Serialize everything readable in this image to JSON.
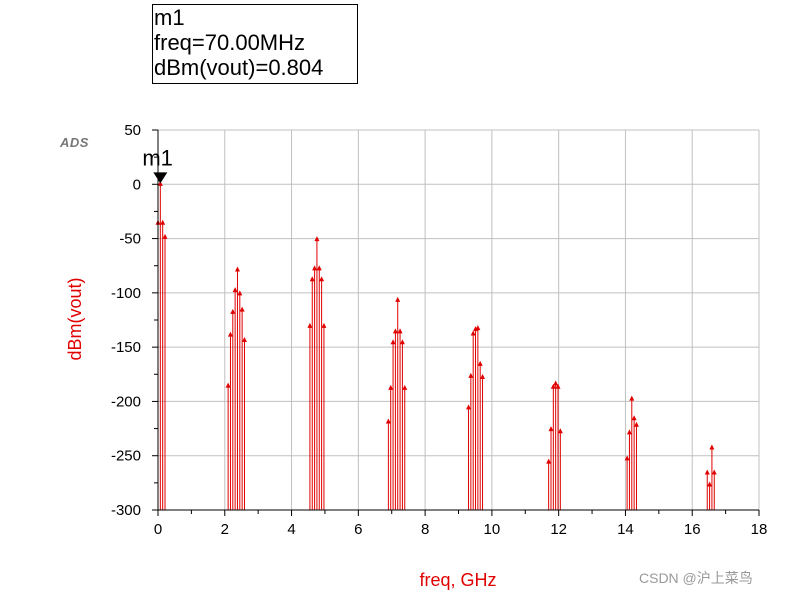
{
  "marker_box": {
    "name": "m1",
    "freq_line": "freq=70.00MHz",
    "value_line": "dBm(vout)=0.804"
  },
  "logo_text": "ADS",
  "watermark": "CSDN @沪上菜鸟",
  "colors": {
    "series": "#e00000",
    "grid": "#c0c0c0",
    "axis": "#000000"
  },
  "chart_data": {
    "type": "stem",
    "xlabel": "freq, GHz",
    "ylabel": "dBm(vout)",
    "xlim": [
      0,
      18
    ],
    "ylim": [
      -300,
      50
    ],
    "xticks": [
      0,
      2,
      4,
      6,
      8,
      10,
      12,
      14,
      16,
      18
    ],
    "yticks": [
      50,
      0,
      -50,
      -100,
      -150,
      -200,
      -250,
      -300
    ],
    "grid": true,
    "marker": {
      "label": "m1",
      "x": 0.07,
      "y": 0.804
    },
    "series": [
      {
        "points": [
          [
            0.07,
            0.804
          ],
          [
            0.0,
            -35
          ],
          [
            0.14,
            -35
          ],
          [
            0.21,
            -48
          ],
          [
            2.1,
            -185
          ],
          [
            2.17,
            -138
          ],
          [
            2.24,
            -117
          ],
          [
            2.31,
            -97
          ],
          [
            2.38,
            -78
          ],
          [
            2.45,
            -100
          ],
          [
            2.52,
            -115
          ],
          [
            2.59,
            -143
          ],
          [
            4.55,
            -130
          ],
          [
            4.62,
            -87
          ],
          [
            4.69,
            -77
          ],
          [
            4.76,
            -50
          ],
          [
            4.83,
            -77
          ],
          [
            4.9,
            -87
          ],
          [
            4.97,
            -130
          ],
          [
            6.9,
            -218
          ],
          [
            6.97,
            -187
          ],
          [
            7.04,
            -145
          ],
          [
            7.11,
            -135
          ],
          [
            7.18,
            -106
          ],
          [
            7.25,
            -135
          ],
          [
            7.32,
            -145
          ],
          [
            7.39,
            -187
          ],
          [
            9.3,
            -205
          ],
          [
            9.37,
            -176
          ],
          [
            9.44,
            -137
          ],
          [
            9.51,
            -133
          ],
          [
            9.58,
            -132
          ],
          [
            9.65,
            -165
          ],
          [
            9.72,
            -177
          ],
          [
            11.7,
            -255
          ],
          [
            11.77,
            -225
          ],
          [
            11.84,
            -186
          ],
          [
            11.91,
            -183
          ],
          [
            11.98,
            -186
          ],
          [
            12.05,
            -227
          ],
          [
            14.05,
            -252
          ],
          [
            14.12,
            -228
          ],
          [
            14.19,
            -197
          ],
          [
            14.26,
            -215
          ],
          [
            14.33,
            -221
          ],
          [
            16.45,
            -265
          ],
          [
            16.52,
            -276
          ],
          [
            16.59,
            -242
          ],
          [
            16.66,
            -265
          ]
        ]
      }
    ]
  }
}
